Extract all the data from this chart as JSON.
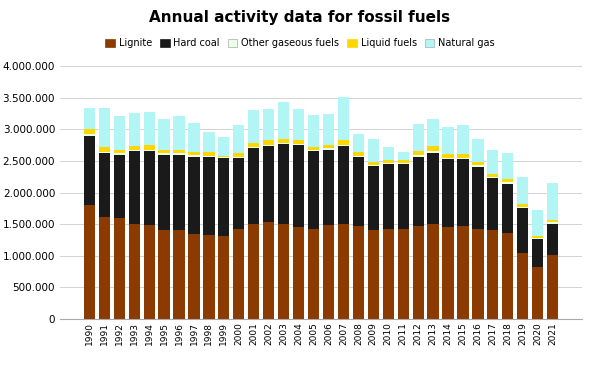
{
  "title": "Annual activity data for fossil fuels",
  "years": [
    1990,
    1991,
    1992,
    1993,
    1994,
    1995,
    1996,
    1997,
    1998,
    1999,
    2000,
    2001,
    2002,
    2003,
    2004,
    2005,
    2006,
    2007,
    2008,
    2009,
    2010,
    2011,
    2012,
    2013,
    2014,
    2015,
    2016,
    2017,
    2018,
    2019,
    2020,
    2021
  ],
  "lignite": [
    1800000,
    1620000,
    1600000,
    1500000,
    1480000,
    1400000,
    1400000,
    1350000,
    1330000,
    1310000,
    1420000,
    1500000,
    1540000,
    1500000,
    1450000,
    1430000,
    1490000,
    1500000,
    1470000,
    1400000,
    1430000,
    1430000,
    1470000,
    1500000,
    1460000,
    1470000,
    1430000,
    1410000,
    1360000,
    1050000,
    820000,
    1020000
  ],
  "hard_coal": [
    1100000,
    1000000,
    1000000,
    1150000,
    1180000,
    1200000,
    1200000,
    1220000,
    1230000,
    1230000,
    1130000,
    1200000,
    1200000,
    1270000,
    1300000,
    1220000,
    1190000,
    1240000,
    1090000,
    1020000,
    1020000,
    1020000,
    1100000,
    1130000,
    1070000,
    1060000,
    980000,
    820000,
    780000,
    700000,
    440000,
    490000
  ],
  "other_gaseous": [
    20000,
    20000,
    20000,
    20000,
    20000,
    20000,
    20000,
    20000,
    20000,
    20000,
    20000,
    20000,
    20000,
    20000,
    20000,
    20000,
    20000,
    20000,
    20000,
    20000,
    20000,
    20000,
    20000,
    20000,
    20000,
    20000,
    20000,
    20000,
    20000,
    20000,
    20000,
    20000
  ],
  "liquid_fuels": [
    80000,
    75000,
    60000,
    60000,
    65000,
    60000,
    55000,
    50000,
    55000,
    20000,
    60000,
    60000,
    65000,
    65000,
    55000,
    50000,
    60000,
    70000,
    60000,
    50000,
    50000,
    45000,
    60000,
    80000,
    60000,
    60000,
    50000,
    50000,
    50000,
    50000,
    30000,
    40000
  ],
  "natural_gas": [
    340000,
    620000,
    530000,
    530000,
    530000,
    490000,
    530000,
    460000,
    330000,
    300000,
    440000,
    530000,
    490000,
    570000,
    500000,
    500000,
    480000,
    680000,
    280000,
    360000,
    200000,
    130000,
    430000,
    430000,
    430000,
    460000,
    360000,
    380000,
    410000,
    420000,
    420000,
    580000
  ],
  "colors": {
    "lignite": "#8B3A00",
    "hard_coal": "#1a1a1a",
    "other_gaseous": "#e8ffe8",
    "liquid_fuels": "#FFD700",
    "natural_gas": "#b2f5f5"
  },
  "ylim": [
    0,
    4000000
  ],
  "yticks": [
    0,
    500000,
    1000000,
    1500000,
    2000000,
    2500000,
    3000000,
    3500000,
    4000000
  ],
  "ytick_labels": [
    "0",
    "500.000",
    "1.000.000",
    "1.500.000",
    "2.000.000",
    "2.500.000",
    "3.000.000",
    "3.500.000",
    "4.000.000"
  ],
  "legend_labels": [
    "Lignite",
    "Hard coal",
    "Other gaseous fuels",
    "Liquid fuels",
    "Natural gas"
  ],
  "legend_colors": [
    "#8B3A00",
    "#1a1a1a",
    "#e8ffe8",
    "#FFD700",
    "#b2f5f5"
  ],
  "bg_color": "#ffffff"
}
